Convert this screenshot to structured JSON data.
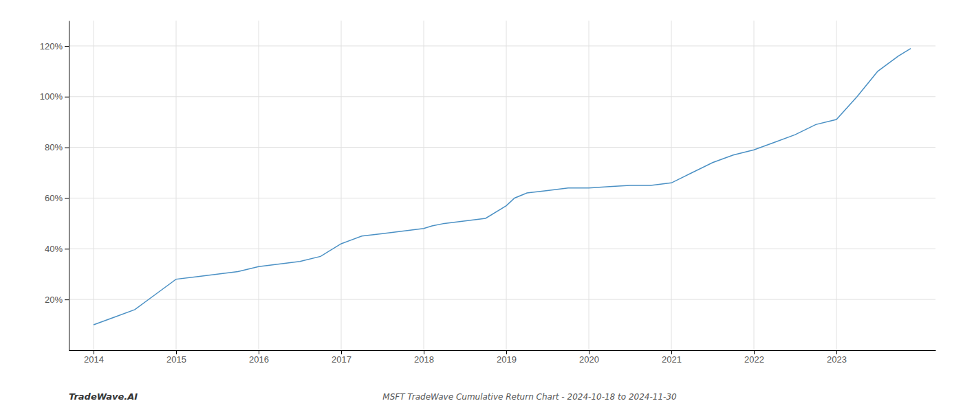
{
  "chart_data": {
    "type": "line",
    "title": "MSFT TradeWave Cumulative Return Chart - 2024-10-18 to 2024-11-30",
    "annotations": [
      "TradeWave.AI"
    ],
    "x": [
      2014,
      2014.25,
      2014.5,
      2014.75,
      2015,
      2015.25,
      2015.5,
      2015.75,
      2016,
      2016.25,
      2016.5,
      2016.75,
      2017,
      2017.25,
      2017.5,
      2017.75,
      2018,
      2018.1,
      2018.25,
      2018.5,
      2018.75,
      2019,
      2019.1,
      2019.25,
      2019.5,
      2019.75,
      2020,
      2020.25,
      2020.5,
      2020.75,
      2021,
      2021.25,
      2021.5,
      2021.75,
      2022,
      2022.25,
      2022.5,
      2022.75,
      2023,
      2023.25,
      2023.5,
      2023.75,
      2023.9
    ],
    "values": [
      10,
      13,
      16,
      22,
      28,
      29,
      30,
      31,
      33,
      34,
      35,
      37,
      42,
      45,
      46,
      47,
      48,
      49,
      50,
      51,
      52,
      57,
      60,
      62,
      63,
      64,
      64,
      64.5,
      65,
      65,
      66,
      70,
      74,
      77,
      79,
      82,
      85,
      89,
      91,
      100,
      110,
      116,
      119
    ],
    "color": "#4a90c4",
    "xlim": [
      2013.7,
      2024.2
    ],
    "ylim": [
      0,
      130
    ],
    "xticks": [
      2014,
      2015,
      2016,
      2017,
      2018,
      2019,
      2020,
      2021,
      2022,
      2023
    ],
    "yticks": [
      {
        "value": 20,
        "label": "20%"
      },
      {
        "value": 40,
        "label": "40%"
      },
      {
        "value": 60,
        "label": "60%"
      },
      {
        "value": 80,
        "label": "80%"
      },
      {
        "value": 100,
        "label": "100%"
      },
      {
        "value": 120,
        "label": "120%"
      }
    ],
    "grid": true
  }
}
